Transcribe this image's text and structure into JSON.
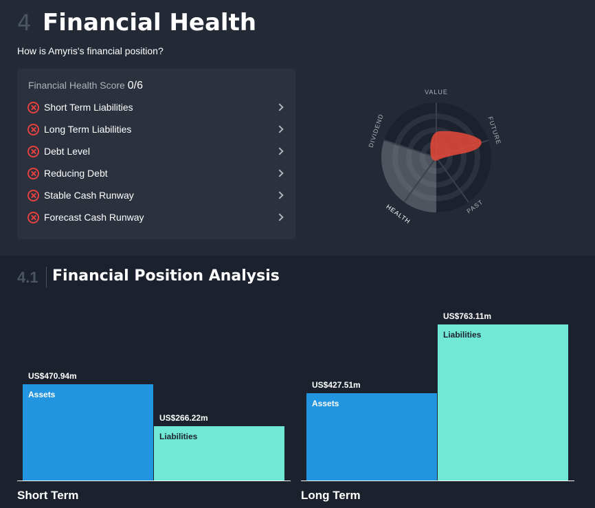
{
  "header": {
    "section_number": "4",
    "title": "Financial Health",
    "subtitle": "How is Amyris's financial position?"
  },
  "health_card": {
    "score_label": "Financial Health Score",
    "score_value": "0/6",
    "checks": [
      {
        "label": "Short Term Liabilities",
        "status": "fail",
        "icon": "x-circle-icon"
      },
      {
        "label": "Long Term Liabilities",
        "status": "fail",
        "icon": "x-circle-icon"
      },
      {
        "label": "Debt Level",
        "status": "fail",
        "icon": "x-circle-icon"
      },
      {
        "label": "Reducing Debt",
        "status": "fail",
        "icon": "x-circle-icon"
      },
      {
        "label": "Stable Cash Runway",
        "status": "fail",
        "icon": "x-circle-icon"
      },
      {
        "label": "Forecast Cash Runway",
        "status": "fail",
        "icon": "x-circle-icon"
      }
    ]
  },
  "snowflake": {
    "axes": [
      "VALUE",
      "FUTURE",
      "PAST",
      "HEALTH",
      "DIVIDEND"
    ],
    "highlighted_axis": "HEALTH"
  },
  "analysis": {
    "section_number": "4.1",
    "title": "Financial Position Analysis"
  },
  "chart_data": [
    {
      "type": "bar",
      "title": "Short Term",
      "categories": [
        "Assets",
        "Liabilities"
      ],
      "values": [
        470.94,
        266.22
      ],
      "value_labels": [
        "US$470.94m",
        "US$266.22m"
      ],
      "unit": "US$ m"
    },
    {
      "type": "bar",
      "title": "Long Term",
      "categories": [
        "Assets",
        "Liabilities"
      ],
      "values": [
        427.51,
        763.11
      ],
      "value_labels": [
        "US$427.51m",
        "US$763.11m"
      ],
      "unit": "US$ m"
    }
  ],
  "colors": {
    "assets": "#2394df",
    "liabilities": "#71e7d6",
    "fail": "#e64141",
    "accent_snowflake": "#e8493a"
  }
}
